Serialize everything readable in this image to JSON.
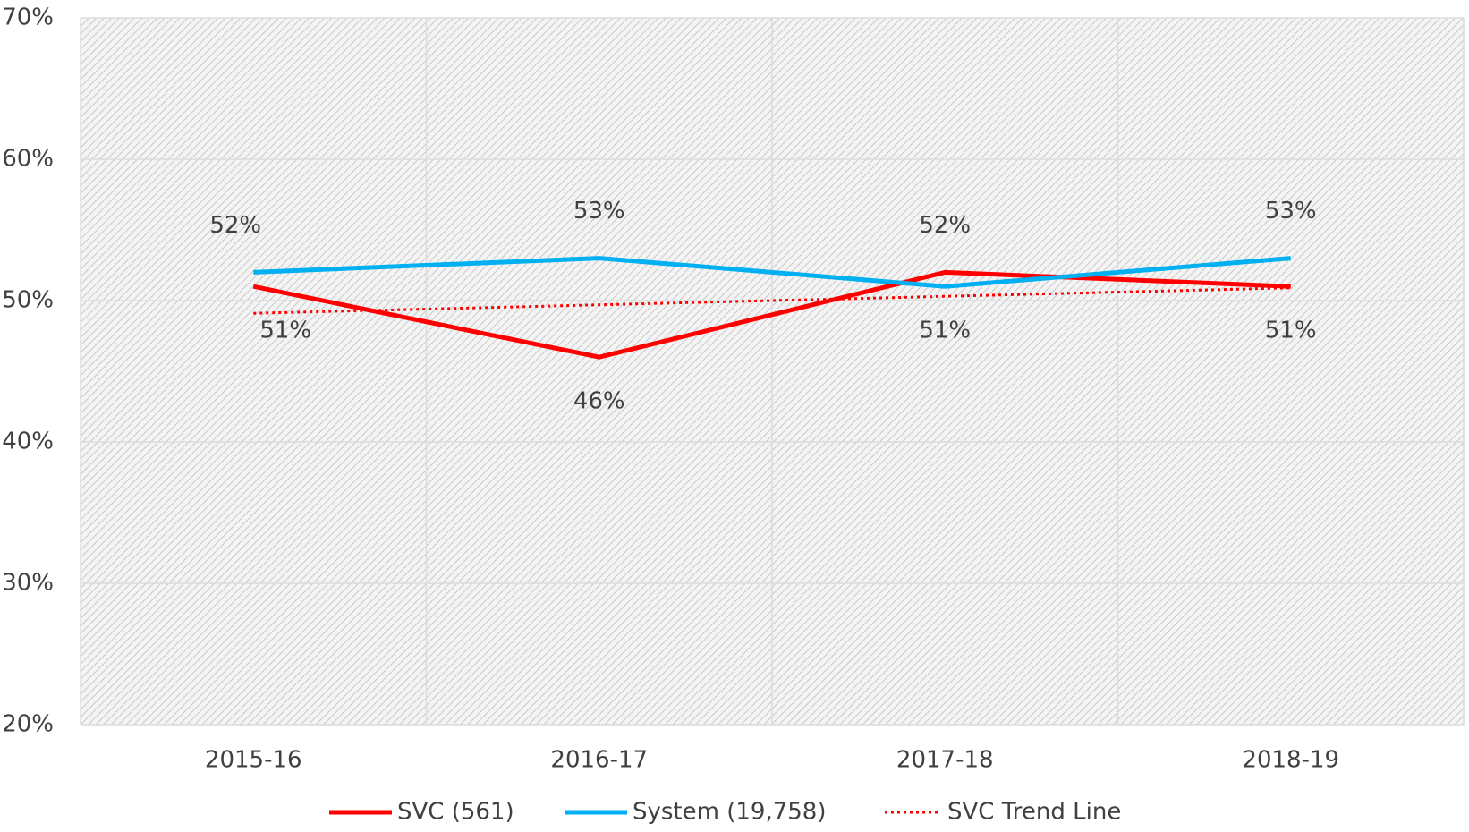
{
  "chart_data": {
    "type": "line",
    "categories": [
      "2015-16",
      "2016-17",
      "2017-18",
      "2018-19"
    ],
    "series": [
      {
        "name": "SVC (561)",
        "color": "#ff0000",
        "values": [
          51,
          46,
          52,
          51
        ],
        "value_labels": [
          "51%",
          "46%",
          "52%",
          "51%"
        ],
        "style": "solid"
      },
      {
        "name": "System (19,758)",
        "color": "#00b0f0",
        "values": [
          52,
          53,
          51,
          53
        ],
        "value_labels": [
          "52%",
          "53%",
          "51%",
          "53%"
        ],
        "style": "solid"
      },
      {
        "name": "SVC Trend Line",
        "color": "#ff0000",
        "values": [
          49.1,
          49.7,
          50.3,
          50.9
        ],
        "style": "dotted"
      }
    ],
    "ylim": [
      20,
      70
    ],
    "yticks": [
      {
        "value": 20,
        "label": "20%"
      },
      {
        "value": 30,
        "label": "30%"
      },
      {
        "value": 40,
        "label": "40%"
      },
      {
        "value": 50,
        "label": "50%"
      },
      {
        "value": 60,
        "label": "60%"
      },
      {
        "value": 70,
        "label": "70%"
      }
    ],
    "grid": true,
    "legend": "bottom"
  }
}
